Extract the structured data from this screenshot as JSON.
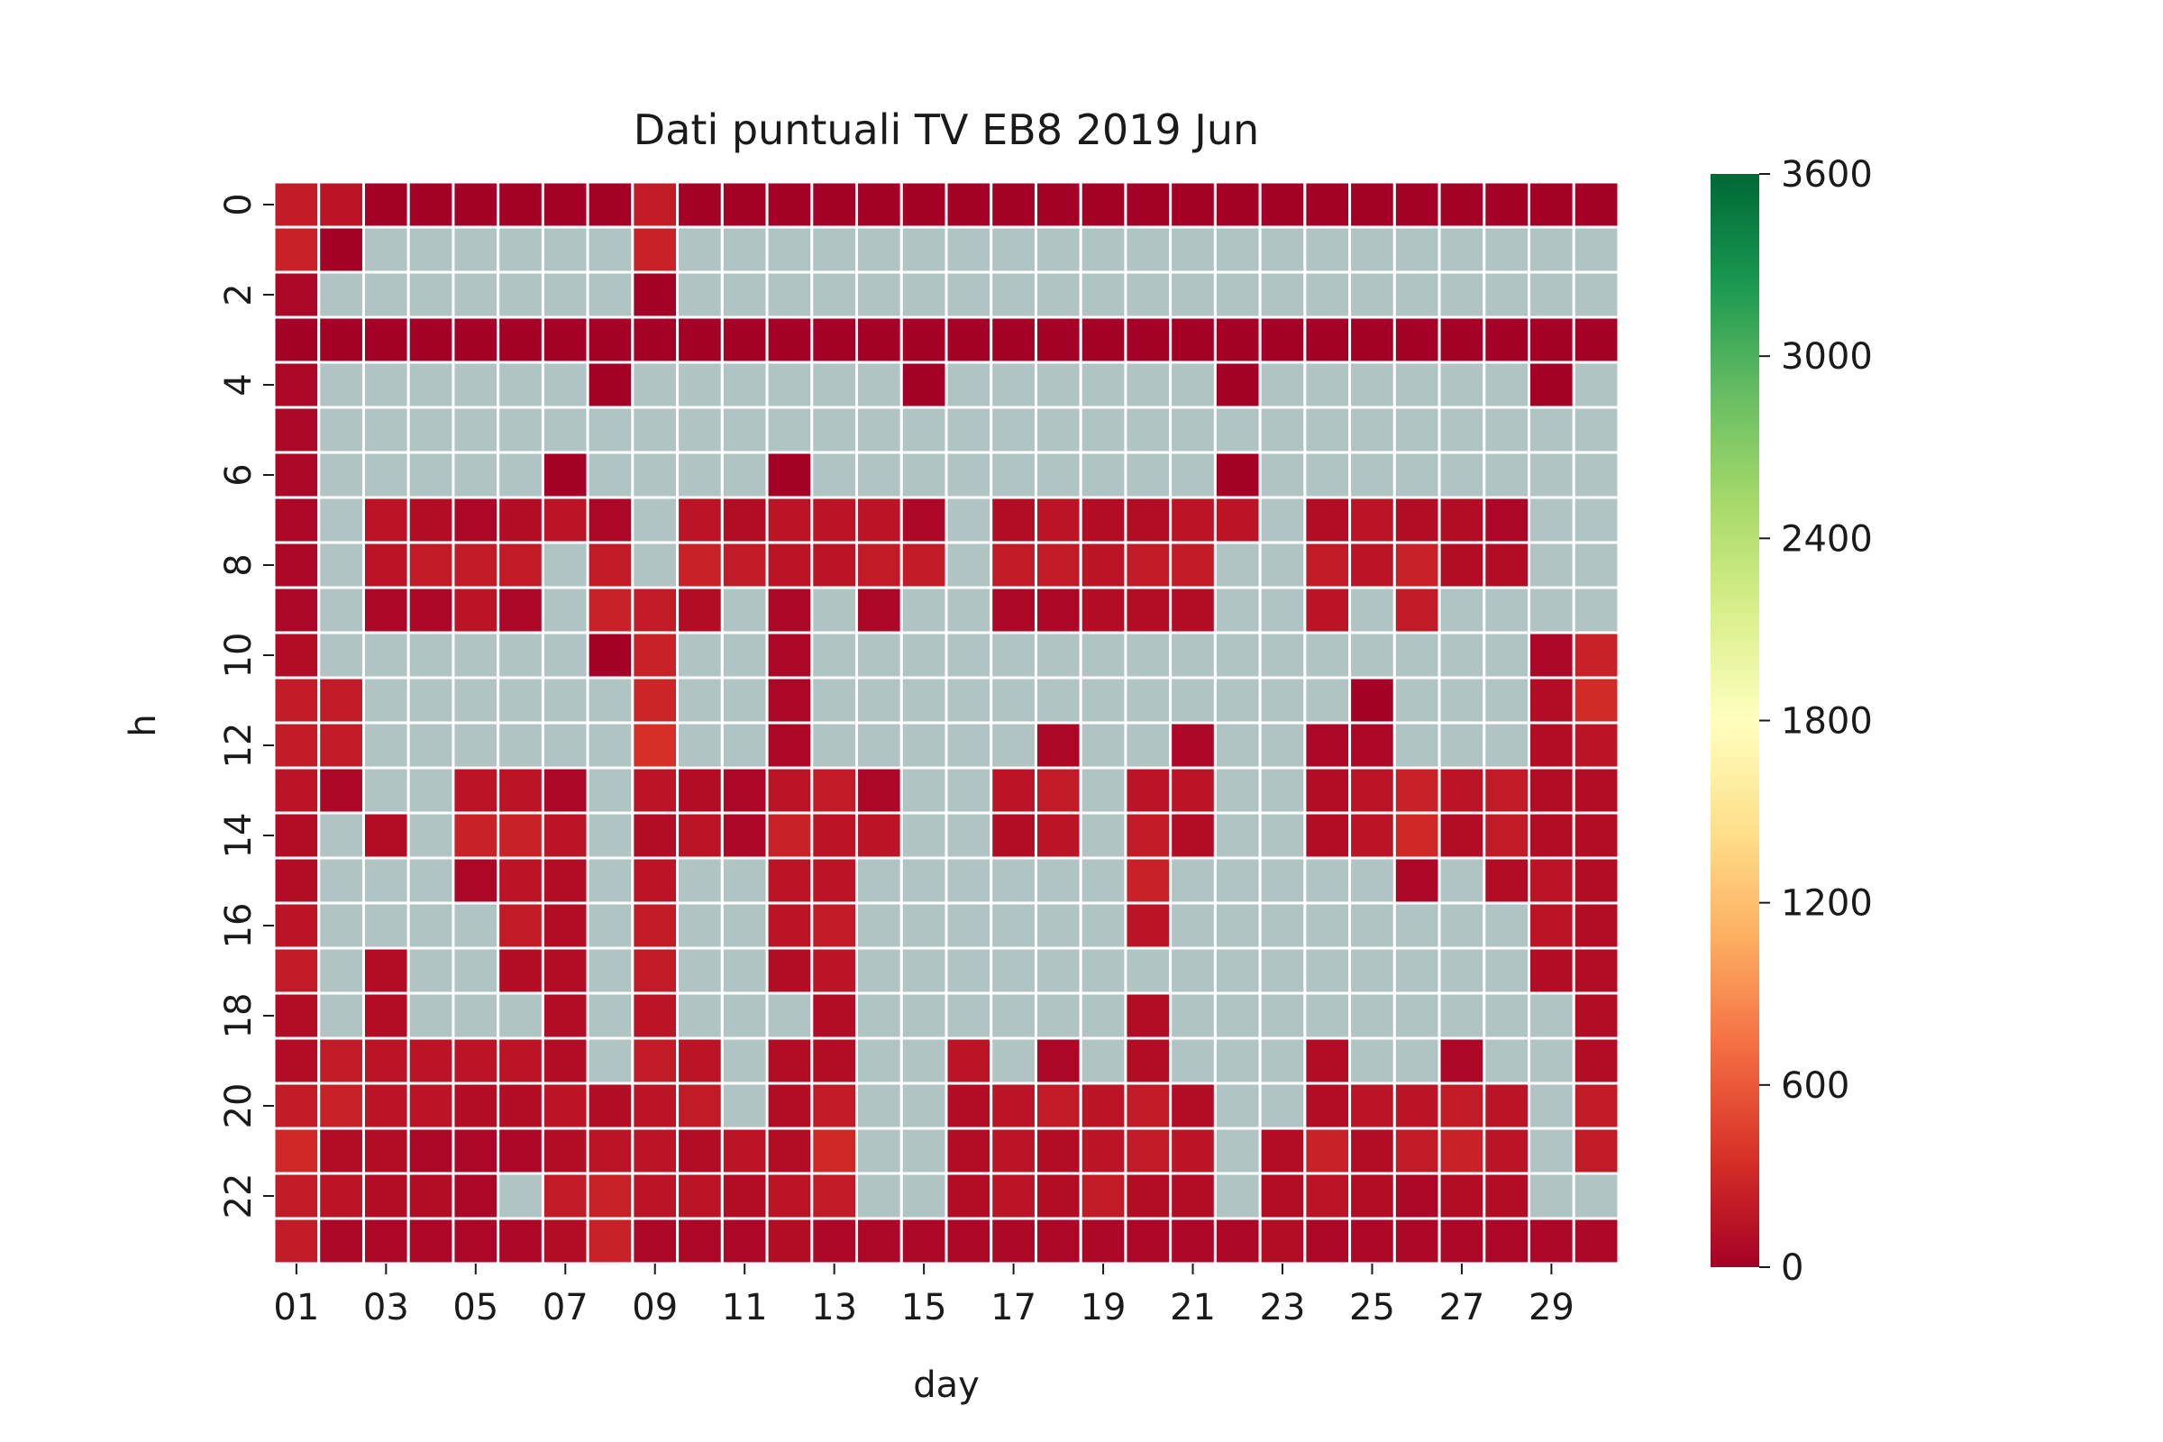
{
  "chart_data": {
    "type": "heatmap",
    "title": "Dati puntuali TV EB8 2019 Jun",
    "xlabel": "day",
    "ylabel": "h",
    "x_categories": [
      "01",
      "02",
      "03",
      "04",
      "05",
      "06",
      "07",
      "08",
      "09",
      "10",
      "11",
      "12",
      "13",
      "14",
      "15",
      "16",
      "17",
      "18",
      "19",
      "20",
      "21",
      "22",
      "23",
      "24",
      "25",
      "26",
      "27",
      "28",
      "29",
      "30"
    ],
    "y_categories": [
      0,
      1,
      2,
      3,
      4,
      5,
      6,
      7,
      8,
      9,
      10,
      11,
      12,
      13,
      14,
      15,
      16,
      17,
      18,
      19,
      20,
      21,
      22,
      23
    ],
    "x_tick_labels": [
      "01",
      "03",
      "05",
      "07",
      "09",
      "11",
      "13",
      "15",
      "17",
      "19",
      "21",
      "23",
      "25",
      "27",
      "29"
    ],
    "y_tick_labels": [
      "0",
      "2",
      "4",
      "6",
      "8",
      "10",
      "12",
      "14",
      "16",
      "18",
      "20",
      "22"
    ],
    "colorbar": {
      "colormap": "RdYlGn",
      "vmin": 0,
      "vmax": 3600,
      "ticks": [
        0,
        600,
        1200,
        1800,
        2400,
        3000,
        3600
      ],
      "tick_labels": [
        "0",
        "600",
        "1200",
        "1800",
        "2400",
        "3000",
        "3600"
      ]
    },
    "missing_color": "#b0c4c4",
    "grid_line_color": "#ffffff",
    "values": [
      [
        200,
        150,
        0,
        0,
        0,
        0,
        0,
        0,
        200,
        0,
        0,
        0,
        0,
        0,
        0,
        0,
        0,
        0,
        0,
        0,
        0,
        0,
        0,
        0,
        0,
        0,
        0,
        0,
        0,
        0
      ],
      [
        250,
        0,
        null,
        null,
        null,
        null,
        null,
        null,
        250,
        null,
        null,
        null,
        null,
        null,
        null,
        null,
        null,
        null,
        null,
        null,
        null,
        null,
        null,
        null,
        null,
        null,
        null,
        null,
        null,
        null
      ],
      [
        50,
        null,
        null,
        null,
        null,
        null,
        null,
        null,
        0,
        null,
        null,
        null,
        null,
        null,
        null,
        null,
        null,
        null,
        null,
        null,
        null,
        null,
        null,
        null,
        null,
        null,
        null,
        null,
        null,
        null
      ],
      [
        0,
        0,
        0,
        0,
        0,
        0,
        0,
        0,
        0,
        0,
        0,
        0,
        0,
        0,
        0,
        0,
        0,
        0,
        0,
        0,
        0,
        0,
        0,
        0,
        0,
        0,
        0,
        0,
        0,
        0
      ],
      [
        50,
        null,
        null,
        null,
        null,
        null,
        null,
        0,
        null,
        null,
        null,
        null,
        null,
        null,
        0,
        null,
        null,
        null,
        null,
        null,
        null,
        0,
        null,
        null,
        null,
        null,
        null,
        null,
        0,
        null
      ],
      [
        50,
        null,
        null,
        null,
        null,
        null,
        null,
        null,
        null,
        null,
        null,
        null,
        null,
        null,
        null,
        null,
        null,
        null,
        null,
        null,
        null,
        null,
        null,
        null,
        null,
        null,
        null,
        null,
        null,
        null
      ],
      [
        50,
        null,
        null,
        null,
        null,
        null,
        0,
        null,
        null,
        null,
        null,
        0,
        null,
        null,
        null,
        null,
        null,
        null,
        null,
        null,
        null,
        0,
        null,
        null,
        null,
        null,
        null,
        null,
        null,
        null
      ],
      [
        50,
        null,
        150,
        100,
        50,
        100,
        150,
        50,
        null,
        150,
        100,
        150,
        150,
        150,
        50,
        null,
        100,
        150,
        100,
        100,
        150,
        150,
        null,
        100,
        150,
        100,
        100,
        50,
        null,
        null
      ],
      [
        50,
        null,
        150,
        200,
        200,
        200,
        null,
        200,
        null,
        250,
        200,
        150,
        150,
        200,
        200,
        null,
        200,
        200,
        150,
        200,
        200,
        null,
        null,
        200,
        150,
        250,
        100,
        100,
        null,
        null
      ],
      [
        50,
        null,
        50,
        50,
        150,
        50,
        null,
        250,
        200,
        100,
        null,
        50,
        null,
        50,
        null,
        null,
        50,
        50,
        100,
        100,
        100,
        null,
        null,
        150,
        null,
        200,
        null,
        null,
        null,
        null
      ],
      [
        100,
        null,
        null,
        null,
        null,
        null,
        null,
        0,
        250,
        null,
        null,
        50,
        null,
        null,
        null,
        null,
        null,
        null,
        null,
        null,
        null,
        null,
        null,
        null,
        null,
        null,
        null,
        null,
        50,
        250
      ],
      [
        200,
        200,
        null,
        null,
        null,
        null,
        null,
        null,
        280,
        null,
        null,
        50,
        null,
        null,
        null,
        null,
        null,
        null,
        null,
        null,
        null,
        null,
        null,
        null,
        0,
        null,
        null,
        null,
        100,
        320
      ],
      [
        200,
        200,
        null,
        null,
        null,
        null,
        null,
        null,
        350,
        null,
        null,
        50,
        null,
        null,
        null,
        null,
        null,
        50,
        null,
        null,
        50,
        null,
        null,
        50,
        50,
        null,
        null,
        null,
        100,
        150
      ],
      [
        150,
        50,
        null,
        null,
        150,
        150,
        50,
        null,
        150,
        100,
        50,
        150,
        200,
        50,
        null,
        null,
        150,
        200,
        null,
        150,
        150,
        null,
        null,
        100,
        150,
        250,
        150,
        200,
        100,
        100
      ],
      [
        100,
        null,
        100,
        null,
        250,
        250,
        150,
        null,
        100,
        150,
        50,
        250,
        150,
        150,
        null,
        null,
        100,
        150,
        null,
        200,
        100,
        null,
        null,
        100,
        150,
        300,
        100,
        200,
        100,
        100
      ],
      [
        100,
        null,
        null,
        null,
        50,
        150,
        100,
        null,
        150,
        null,
        null,
        150,
        150,
        null,
        null,
        null,
        null,
        null,
        null,
        250,
        null,
        null,
        null,
        null,
        null,
        50,
        null,
        100,
        150,
        100
      ],
      [
        150,
        null,
        null,
        null,
        null,
        200,
        100,
        null,
        200,
        null,
        null,
        150,
        200,
        null,
        null,
        null,
        null,
        null,
        null,
        150,
        null,
        null,
        null,
        null,
        null,
        null,
        null,
        null,
        150,
        100
      ],
      [
        200,
        null,
        100,
        null,
        null,
        100,
        100,
        null,
        200,
        null,
        null,
        100,
        150,
        null,
        null,
        null,
        null,
        null,
        null,
        null,
        null,
        null,
        null,
        null,
        null,
        null,
        null,
        null,
        100,
        100
      ],
      [
        100,
        null,
        100,
        null,
        null,
        null,
        100,
        null,
        150,
        null,
        null,
        null,
        100,
        null,
        null,
        null,
        null,
        null,
        null,
        100,
        null,
        null,
        null,
        null,
        null,
        null,
        null,
        null,
        null,
        100
      ],
      [
        100,
        200,
        150,
        150,
        150,
        150,
        100,
        null,
        200,
        150,
        null,
        100,
        100,
        null,
        null,
        150,
        null,
        50,
        null,
        100,
        null,
        null,
        null,
        100,
        null,
        null,
        50,
        null,
        null,
        100
      ],
      [
        200,
        250,
        150,
        150,
        100,
        100,
        150,
        100,
        150,
        200,
        null,
        100,
        200,
        null,
        null,
        100,
        150,
        200,
        150,
        200,
        100,
        null,
        null,
        100,
        150,
        150,
        200,
        150,
        null,
        200
      ],
      [
        300,
        100,
        100,
        50,
        50,
        50,
        100,
        150,
        150,
        100,
        150,
        100,
        300,
        null,
        null,
        100,
        150,
        100,
        150,
        200,
        150,
        null,
        100,
        250,
        100,
        200,
        250,
        150,
        null,
        200
      ],
      [
        200,
        150,
        100,
        100,
        50,
        null,
        200,
        250,
        150,
        150,
        100,
        150,
        200,
        null,
        null,
        100,
        150,
        100,
        200,
        100,
        100,
        null,
        100,
        150,
        100,
        50,
        100,
        100,
        null,
        null
      ],
      [
        200,
        50,
        50,
        50,
        50,
        50,
        100,
        250,
        50,
        50,
        50,
        100,
        50,
        50,
        50,
        50,
        50,
        50,
        50,
        50,
        50,
        50,
        100,
        50,
        50,
        50,
        50,
        50,
        50,
        50
      ]
    ]
  }
}
